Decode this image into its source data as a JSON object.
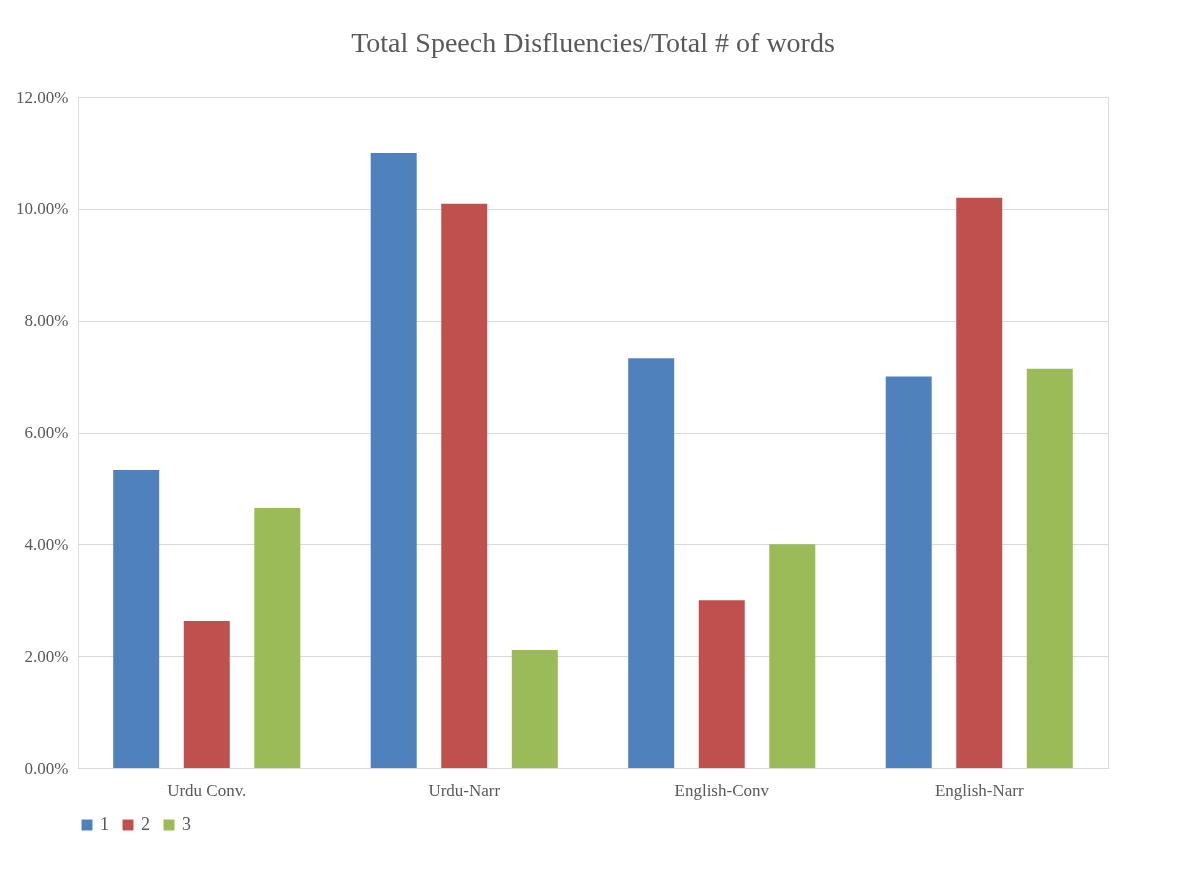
{
  "chart_data": {
    "type": "bar",
    "title": "Total Speech Disfluencies/Total # of words",
    "categories": [
      "Urdu Conv.",
      "Urdu-Narr",
      "English-Conv",
      "English-Narr"
    ],
    "series": [
      {
        "name": "1",
        "color": "#4f81bd",
        "values": [
          5.33,
          11.0,
          7.33,
          7.0
        ]
      },
      {
        "name": "2",
        "color": "#c0504d",
        "values": [
          2.63,
          10.09,
          3.0,
          10.2
        ]
      },
      {
        "name": "3",
        "color": "#9bbb59",
        "values": [
          4.65,
          2.11,
          4.0,
          7.14
        ]
      }
    ],
    "ylim": [
      0,
      12
    ],
    "yticks": [
      {
        "value": 0,
        "label": "0.00%"
      },
      {
        "value": 2,
        "label": "2.00%"
      },
      {
        "value": 4,
        "label": "4.00%"
      },
      {
        "value": 6,
        "label": "6.00%"
      },
      {
        "value": 8,
        "label": "8.00%"
      },
      {
        "value": 10,
        "label": "10.00%"
      },
      {
        "value": 12,
        "label": "12.00%"
      }
    ],
    "grid": "y",
    "legend": "bottom"
  }
}
